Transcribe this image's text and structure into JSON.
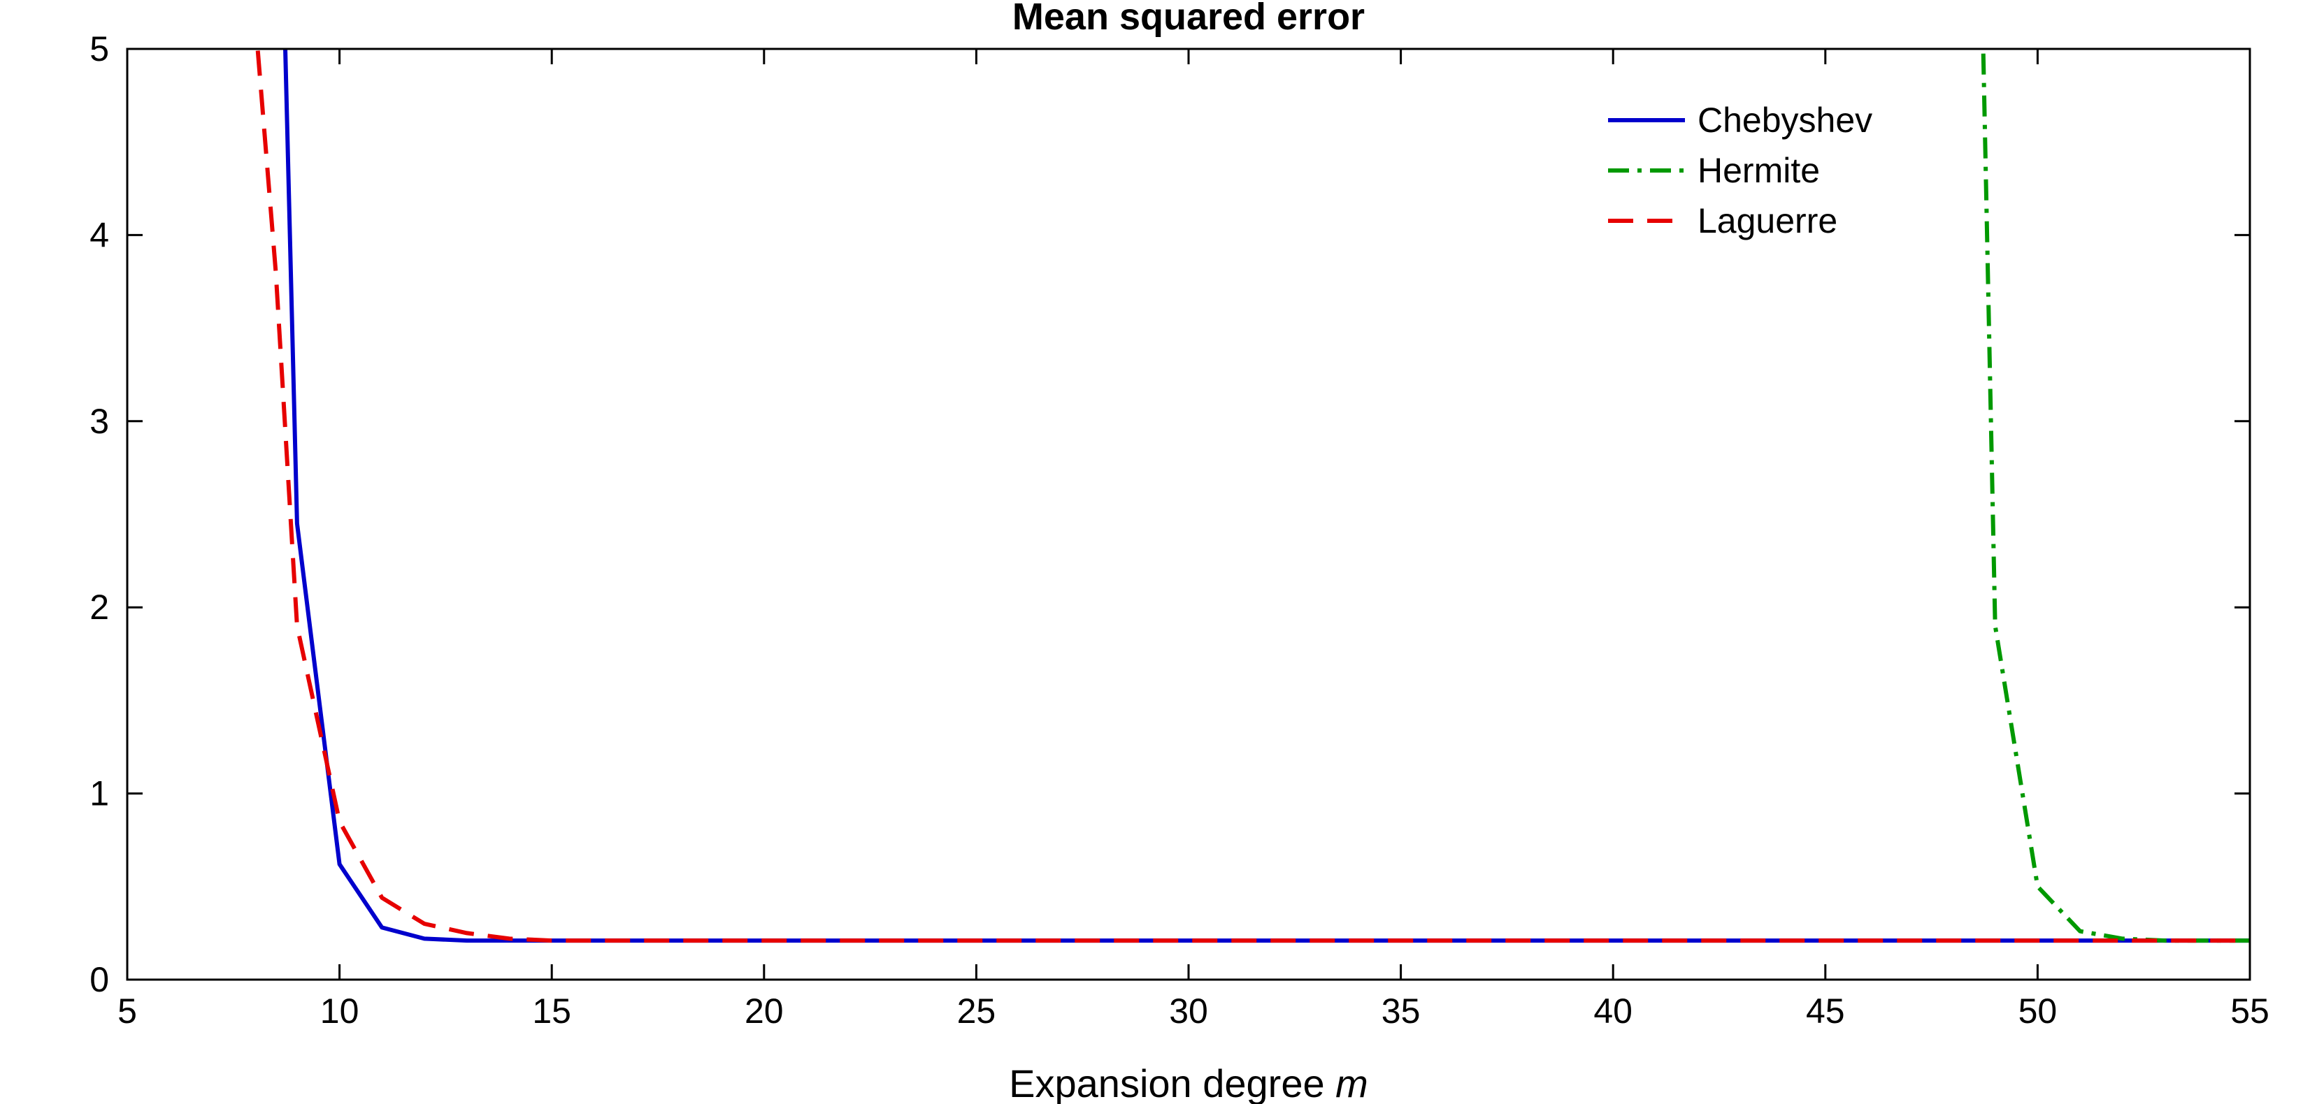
{
  "chart_data": {
    "type": "line",
    "title": "Mean squared error",
    "xlabel_main": "Expansion degree ",
    "xlabel_var": "m",
    "ylabel": "",
    "xlim": [
      5,
      55
    ],
    "ylim": [
      0,
      5
    ],
    "xticks": [
      5,
      10,
      15,
      20,
      25,
      30,
      35,
      40,
      45,
      50,
      55
    ],
    "yticks": [
      0,
      1,
      2,
      3,
      4,
      5
    ],
    "grid": false,
    "legend_position": "top-right",
    "colors": {
      "Chebyshev": "#0000cc",
      "Hermite": "#009900",
      "Laguerre": "#e60000"
    },
    "series": [
      {
        "name": "Chebyshev",
        "style": "solid",
        "points": [
          [
            8.7,
            5.2
          ],
          [
            9,
            2.45
          ],
          [
            10,
            0.62
          ],
          [
            11,
            0.28
          ],
          [
            12,
            0.22
          ],
          [
            13,
            0.21
          ],
          [
            14,
            0.21
          ],
          [
            15,
            0.21
          ],
          [
            20,
            0.21
          ],
          [
            25,
            0.21
          ],
          [
            30,
            0.21
          ],
          [
            35,
            0.21
          ],
          [
            40,
            0.21
          ],
          [
            45,
            0.21
          ],
          [
            50,
            0.21
          ],
          [
            55,
            0.21
          ]
        ]
      },
      {
        "name": "Hermite",
        "style": "dashdot",
        "points": [
          [
            48.7,
            5.2
          ],
          [
            49,
            1.9
          ],
          [
            50,
            0.5
          ],
          [
            51,
            0.26
          ],
          [
            52,
            0.22
          ],
          [
            53,
            0.21
          ],
          [
            54,
            0.21
          ],
          [
            55,
            0.21
          ]
        ]
      },
      {
        "name": "Laguerre",
        "style": "dashed",
        "points": [
          [
            8.0,
            5.2
          ],
          [
            8.5,
            3.8
          ],
          [
            9,
            1.9
          ],
          [
            10,
            0.85
          ],
          [
            11,
            0.44
          ],
          [
            12,
            0.3
          ],
          [
            13,
            0.25
          ],
          [
            14,
            0.22
          ],
          [
            15,
            0.21
          ],
          [
            20,
            0.21
          ],
          [
            25,
            0.21
          ],
          [
            30,
            0.21
          ],
          [
            35,
            0.21
          ],
          [
            40,
            0.21
          ],
          [
            45,
            0.21
          ],
          [
            50,
            0.21
          ],
          [
            55,
            0.21
          ]
        ]
      }
    ]
  }
}
